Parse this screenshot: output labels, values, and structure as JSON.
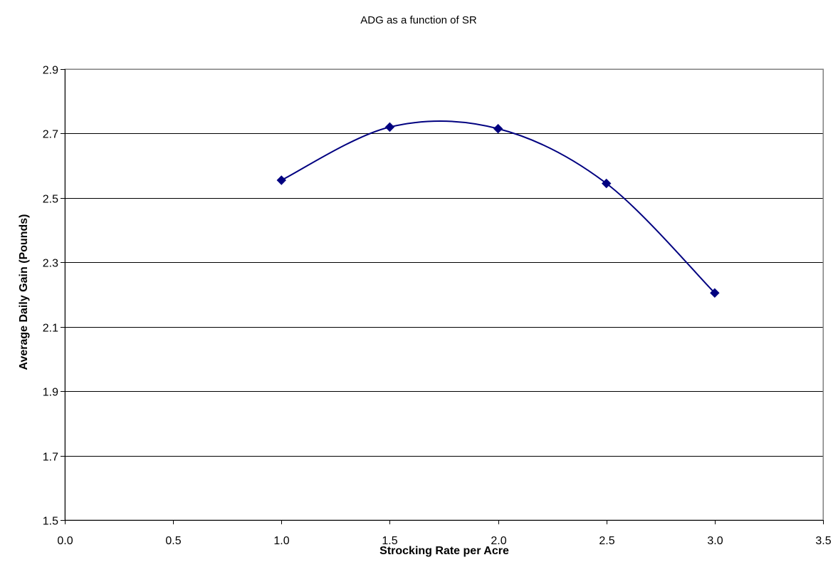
{
  "chart_data": {
    "type": "line",
    "title": "ADG as a function of SR",
    "xlabel": "Strocking Rate per Acre",
    "ylabel": "Average Daily Gain (Pounds)",
    "xlim": [
      0.0,
      3.5
    ],
    "ylim": [
      1.5,
      2.9
    ],
    "x_ticks": [
      "0.0",
      "0.5",
      "1.0",
      "1.5",
      "2.0",
      "2.5",
      "3.0",
      "3.5"
    ],
    "y_ticks": [
      "1.5",
      "1.7",
      "1.9",
      "2.1",
      "2.3",
      "2.5",
      "2.7",
      "2.9"
    ],
    "smoothed": true,
    "marker": "diamond",
    "grid": "horizontal",
    "legend": "none",
    "series": [
      {
        "color": "#000080",
        "x": [
          1.0,
          1.5,
          2.0,
          2.5,
          3.0
        ],
        "y": [
          2.555,
          2.72,
          2.715,
          2.545,
          2.205
        ]
      }
    ]
  }
}
